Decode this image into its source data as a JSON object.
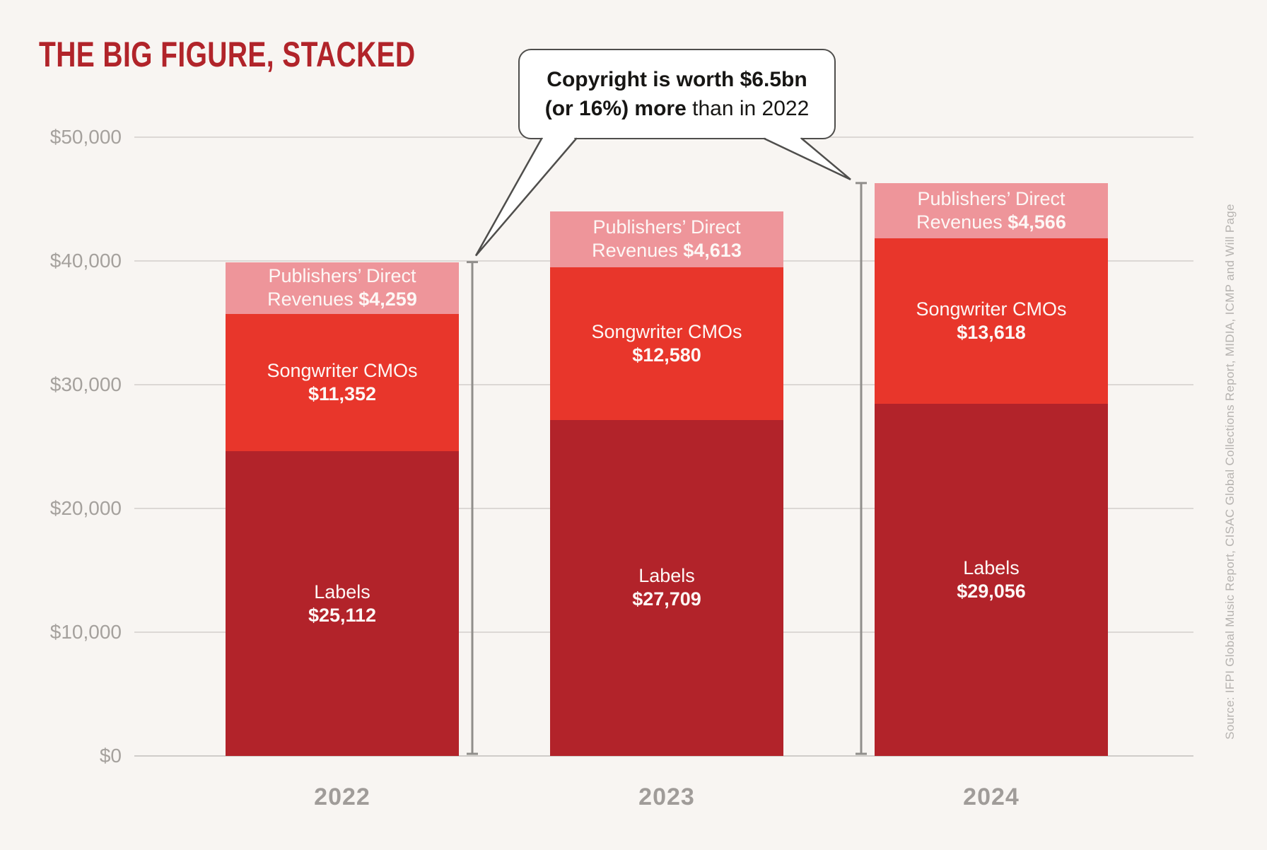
{
  "title": "THE BIG FIGURE, STACKED",
  "callout": {
    "line1": "Copyright is worth $6.5bn",
    "line2_bold": "(or 16%) more",
    "line2_rest": " than in 2022"
  },
  "source": "Source: IFPI Global Music Report, CISAC Global Collections Report, MIDIA, ICMP and Will Page",
  "colors": {
    "background": "#f8f5f2",
    "title_red": "#b1242a",
    "labels_dark_red": "#b2232a",
    "songwriter_red": "#e8362b",
    "publishers_pink": "#ee959a",
    "gridline": "#dcd8d5",
    "zero_axis": "#cfccc9",
    "axis_text": "#a5a19d",
    "year_text": "#a09c99",
    "bracket_gray": "#908e8b",
    "bubble_border": "#4f4e4c",
    "bar_text": "#fdf7f5"
  },
  "chart_data": {
    "type": "bar",
    "stacked": true,
    "title": "THE BIG FIGURE, STACKED",
    "categories": [
      "2022",
      "2023",
      "2024"
    ],
    "series": [
      {
        "name": "Labels",
        "color": "#b2232a",
        "values": [
          25112,
          27709,
          29056
        ],
        "display": [
          "$25,112",
          "$27,709",
          "$29,056"
        ],
        "label_lines": [
          "Labels"
        ]
      },
      {
        "name": "Songwriter CMOs",
        "color": "#e8362b",
        "values": [
          11352,
          12580,
          13618
        ],
        "display": [
          "$11,352",
          "$12,580",
          "$13,618"
        ],
        "label_lines": [
          "Songwriter CMOs"
        ]
      },
      {
        "name": "Publishers’ Direct Revenues",
        "color": "#ee959a",
        "values": [
          4259,
          4613,
          4566
        ],
        "display": [
          "$4,259",
          "$4,613",
          "$4,566"
        ],
        "label_lines": [
          "Publishers’ Direct",
          "Revenues"
        ],
        "value_inline": true
      }
    ],
    "totals": [
      40723,
      44902,
      47240
    ],
    "y_ticks": [
      "$0",
      "$10,000",
      "$20,000",
      "$30,000",
      "$40,000",
      "$50,000"
    ],
    "ylim": [
      0,
      50000
    ],
    "xlabel": "",
    "ylabel": "",
    "grid": true,
    "legend_position": "none",
    "annotation": "Copyright is worth $6.5bn (or 16%) more than in 2022",
    "annotation_compares": [
      "2022",
      "2024"
    ]
  }
}
